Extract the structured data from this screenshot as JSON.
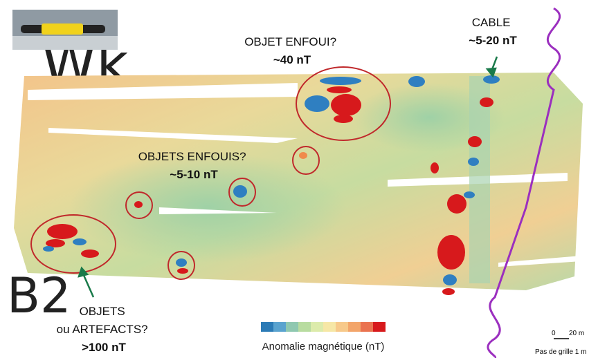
{
  "background_labels": [
    "Wk",
    "B2"
  ],
  "annotations": [
    {
      "lines": [
        "OBJET ENFOUI?",
        "~40 nT"
      ]
    },
    {
      "lines": [
        "CABLE",
        "~5-20 nT"
      ]
    },
    {
      "lines": [
        "OBJETS ENFOUIS?",
        "~5-10 nT"
      ]
    },
    {
      "lines": [
        "OBJETS",
        "ou ARTEFACTS?",
        ">100 nT"
      ]
    }
  ],
  "legend": {
    "title": "Anomalie magnétique (nT)"
  },
  "scale": {
    "start": "0",
    "end": "20 m",
    "grid_step": "Pas de grille 1 m"
  }
}
